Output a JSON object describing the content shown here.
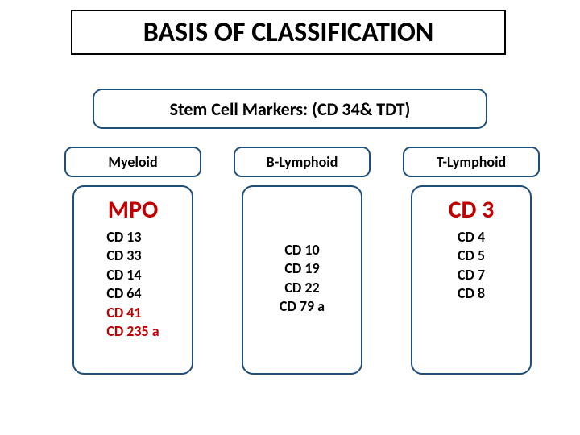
{
  "title": "BASIS OF CLASSIFICATION",
  "stem": "Stem Cell Markers: (CD 34& TDT)",
  "colors": {
    "border": "#1f4e79",
    "red": "#c00000",
    "black": "#000000",
    "background": "#ffffff"
  },
  "columns": [
    {
      "header": "Myeloid",
      "main": "MPO",
      "items": [
        {
          "text": "CD 13",
          "color": "black"
        },
        {
          "text": "CD 33",
          "color": "black"
        },
        {
          "text": "CD 14",
          "color": "black"
        },
        {
          "text": "CD 64",
          "color": "black"
        },
        {
          "text": "CD 41",
          "color": "red"
        },
        {
          "text": "CD 235 a",
          "color": "red"
        }
      ]
    },
    {
      "header": "B-Lymphoid",
      "main": "",
      "items": [
        {
          "text": "CD 10",
          "color": "black"
        },
        {
          "text": "CD 19",
          "color": "black"
        },
        {
          "text": "CD 22",
          "color": "black"
        },
        {
          "text": "CD 79 a",
          "color": "black"
        }
      ]
    },
    {
      "header": "T-Lymphoid",
      "main": "CD 3",
      "items": [
        {
          "text": "CD 4",
          "color": "black"
        },
        {
          "text": "CD 5",
          "color": "black"
        },
        {
          "text": "CD 7",
          "color": "black"
        },
        {
          "text": "CD 8",
          "color": "black"
        }
      ]
    }
  ]
}
